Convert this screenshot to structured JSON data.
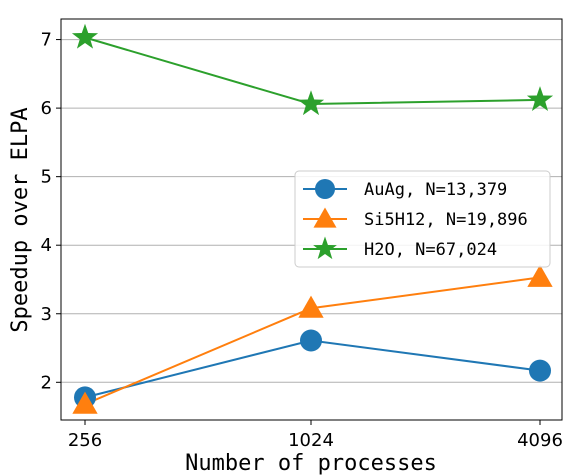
{
  "chart_data": {
    "type": "line",
    "title": "",
    "xlabel": "Number of processes",
    "ylabel": "Speedup over ELPA",
    "categories": [
      "256",
      "1024",
      "4096"
    ],
    "yticks": [
      "2",
      "3",
      "4",
      "5",
      "6",
      "7"
    ],
    "ylim": [
      1.45,
      7.3
    ],
    "grid": "horizontal",
    "legend_position": "center-right",
    "series": [
      {
        "name": "AuAg, N=13,379",
        "values": [
          1.78,
          2.61,
          2.17
        ],
        "color": "#1f77b4",
        "marker": "circle"
      },
      {
        "name": "Si5H12, N=19,896",
        "values": [
          1.68,
          3.08,
          3.53
        ],
        "color": "#ff7f0e",
        "marker": "triangle"
      },
      {
        "name": "H2O, N=67,024",
        "values": [
          7.03,
          6.06,
          6.12
        ],
        "color": "#2ca02c",
        "marker": "star"
      }
    ]
  }
}
